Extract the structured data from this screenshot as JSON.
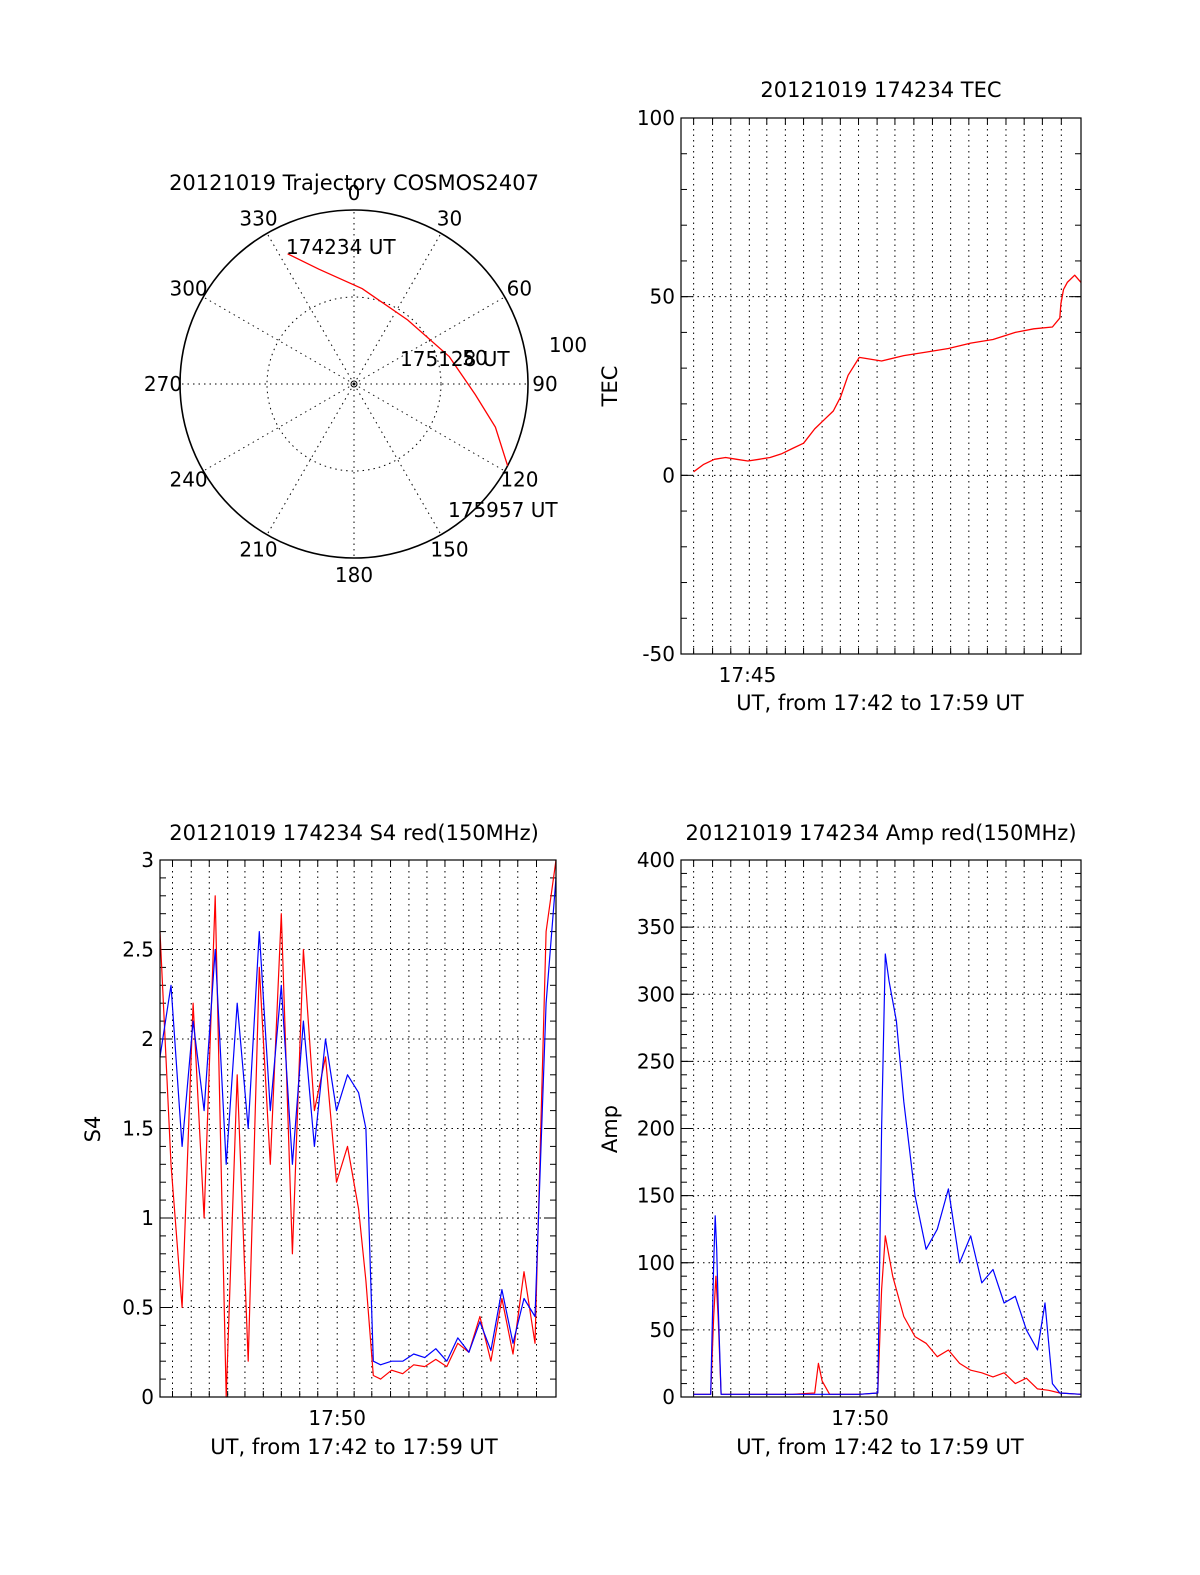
{
  "colors": {
    "red_channel": "#ff0000",
    "blue_channel": "#0000ff",
    "axes": "#000000"
  },
  "polar": {
    "title": "20121019 Trajectory COSMOS2407",
    "angle_labels": [
      "0",
      "30",
      "60",
      "90",
      "120",
      "150",
      "180",
      "210",
      "240",
      "270",
      "300",
      "330"
    ],
    "radial_labels": [
      "50",
      "100"
    ],
    "annotations": {
      "start": "174234 UT",
      "mid": "175128 UT",
      "end": "175957 UT"
    }
  },
  "chart_data": [
    {
      "type": "polar-trajectory",
      "title": "20121019 Trajectory COSMOS2407",
      "r_max": 100,
      "r_grid": [
        50,
        100
      ],
      "angle_ticks": [
        0,
        30,
        60,
        90,
        120,
        150,
        180,
        210,
        240,
        270,
        300,
        330
      ],
      "track": [
        {
          "az": 333,
          "r": 84
        },
        {
          "az": 343,
          "r": 69
        },
        {
          "az": 5,
          "r": 55
        },
        {
          "az": 40,
          "r": 48
        },
        {
          "az": 74,
          "r": 57
        },
        {
          "az": 95,
          "r": 70
        },
        {
          "az": 107,
          "r": 85
        },
        {
          "az": 118,
          "r": 100
        }
      ],
      "labels": [
        {
          "text": "174234 UT",
          "at": "start"
        },
        {
          "text": "175128 UT",
          "at": "middle"
        },
        {
          "text": "175957 UT",
          "at": "end"
        }
      ]
    },
    {
      "type": "line",
      "title": "20121019 174234 TEC",
      "ylabel": "TEC",
      "xlabel": "UT, from 17:42 to 17:59 UT",
      "xlim": [
        "17:42:00",
        "17:59:57"
      ],
      "ylim": [
        -50,
        100
      ],
      "yticks": [
        -50,
        0,
        50,
        100
      ],
      "xtick_labels": [
        {
          "t": "17:45",
          "at": "17:44:59"
        }
      ],
      "series": [
        {
          "color": "#ff0000",
          "x": [
            "17:42:34",
            "17:43:00",
            "17:43:30",
            "17:44:00",
            "17:44:30",
            "17:45:00",
            "17:45:30",
            "17:46:00",
            "17:46:30",
            "17:47:00",
            "17:47:30",
            "17:48:00",
            "17:48:30",
            "17:48:50",
            "17:49:10",
            "17:49:30",
            "17:50:00",
            "17:51:00",
            "17:52:00",
            "17:53:00",
            "17:54:00",
            "17:55:00",
            "17:56:00",
            "17:57:00",
            "17:57:50",
            "17:58:40",
            "17:59:00",
            "17:59:03",
            "17:59:10",
            "17:59:20",
            "17:59:40",
            "17:59:57"
          ],
          "y": [
            1,
            3,
            4.5,
            5,
            4.5,
            4,
            4.5,
            5,
            6,
            7.5,
            9,
            13,
            16,
            18,
            22,
            28,
            33,
            32,
            33.5,
            34.5,
            35.5,
            37,
            38,
            40,
            41,
            41.5,
            44,
            48,
            52,
            54,
            56,
            54
          ]
        }
      ]
    },
    {
      "type": "line",
      "title": "20121019 174234 S4 red(150MHz)",
      "ylabel": "S4",
      "xlabel": "UT, from 17:42 to 17:59 UT",
      "xlim": [
        "17:42:00",
        "17:59:57"
      ],
      "ylim": [
        0,
        3
      ],
      "yticks": [
        0,
        0.5,
        1,
        1.5,
        2,
        2.5,
        3
      ],
      "xtick_labels": [
        {
          "t": "17:50",
          "at": "17:50:02"
        }
      ],
      "series": [
        {
          "color": "#ff0000",
          "x": [
            "17:42:00",
            "17:42:30",
            "17:43:00",
            "17:43:30",
            "17:44:00",
            "17:44:30",
            "17:45:00",
            "17:45:30",
            "17:46:00",
            "17:46:30",
            "17:47:00",
            "17:47:30",
            "17:48:00",
            "17:48:30",
            "17:49:00",
            "17:49:30",
            "17:50:00",
            "17:50:30",
            "17:51:00",
            "17:51:20",
            "17:51:40",
            "17:52:00",
            "17:52:30",
            "17:53:00",
            "17:53:30",
            "17:54:00",
            "17:54:30",
            "17:55:00",
            "17:55:30",
            "17:56:00",
            "17:56:30",
            "17:57:00",
            "17:57:30",
            "17:58:00",
            "17:58:30",
            "17:59:00",
            "17:59:30",
            "17:59:57"
          ],
          "y": [
            2.6,
            1.3,
            0.5,
            2.2,
            1.0,
            2.8,
            0.0,
            1.8,
            0.2,
            2.4,
            1.3,
            2.7,
            0.8,
            2.5,
            1.6,
            1.9,
            1.2,
            1.4,
            1.05,
            0.65,
            0.12,
            0.1,
            0.15,
            0.13,
            0.18,
            0.17,
            0.21,
            0.17,
            0.3,
            0.25,
            0.45,
            0.2,
            0.55,
            0.24,
            0.7,
            0.3,
            2.6,
            3.0
          ]
        },
        {
          "color": "#0000ff",
          "x": [
            "17:42:00",
            "17:42:30",
            "17:43:00",
            "17:43:30",
            "17:44:00",
            "17:44:30",
            "17:45:00",
            "17:45:30",
            "17:46:00",
            "17:46:30",
            "17:47:00",
            "17:47:30",
            "17:48:00",
            "17:48:30",
            "17:49:00",
            "17:49:30",
            "17:50:00",
            "17:50:30",
            "17:51:00",
            "17:51:20",
            "17:51:40",
            "17:52:00",
            "17:52:30",
            "17:53:00",
            "17:53:30",
            "17:54:00",
            "17:54:30",
            "17:55:00",
            "17:55:30",
            "17:56:00",
            "17:56:30",
            "17:57:00",
            "17:57:30",
            "17:58:00",
            "17:58:30",
            "17:59:00",
            "17:59:30",
            "17:59:57"
          ],
          "y": [
            1.9,
            2.3,
            1.4,
            2.1,
            1.6,
            2.5,
            1.3,
            2.2,
            1.5,
            2.6,
            1.6,
            2.3,
            1.3,
            2.1,
            1.4,
            2.0,
            1.6,
            1.8,
            1.7,
            1.5,
            0.2,
            0.18,
            0.2,
            0.2,
            0.24,
            0.22,
            0.27,
            0.2,
            0.33,
            0.25,
            0.42,
            0.26,
            0.6,
            0.3,
            0.55,
            0.45,
            2.2,
            2.9
          ]
        }
      ]
    },
    {
      "type": "line",
      "title": "20121019 174234 Amp red(150MHz)",
      "ylabel": "Amp",
      "xlabel": "UT, from 17:42 to 17:59 UT",
      "xlim": [
        "17:42:00",
        "17:59:57"
      ],
      "ylim": [
        0,
        400
      ],
      "yticks": [
        0,
        50,
        100,
        150,
        200,
        250,
        300,
        350,
        400
      ],
      "xtick_labels": [
        {
          "t": "17:50",
          "at": "17:50:02"
        }
      ],
      "series": [
        {
          "color": "#ff0000",
          "x": [
            "17:42:34",
            "17:43:20",
            "17:43:28",
            "17:43:34",
            "17:43:40",
            "17:43:48",
            "17:45:00",
            "17:47:00",
            "17:48:00",
            "17:48:10",
            "17:48:20",
            "17:48:40",
            "17:50:00",
            "17:50:50",
            "17:51:00",
            "17:51:10",
            "17:51:30",
            "17:52:00",
            "17:52:30",
            "17:53:00",
            "17:53:30",
            "17:54:00",
            "17:54:30",
            "17:55:00",
            "17:55:30",
            "17:56:00",
            "17:56:30",
            "17:57:00",
            "17:57:30",
            "17:58:00",
            "17:58:30",
            "17:59:00",
            "17:59:57"
          ],
          "y": [
            2,
            2,
            60,
            90,
            60,
            2,
            2,
            2,
            3,
            25,
            12,
            2,
            2,
            3,
            80,
            120,
            90,
            60,
            45,
            40,
            30,
            35,
            25,
            20,
            18,
            15,
            18,
            10,
            14,
            6,
            5,
            3,
            2
          ]
        },
        {
          "color": "#0000ff",
          "x": [
            "17:42:34",
            "17:43:20",
            "17:43:28",
            "17:43:32",
            "17:43:36",
            "17:43:40",
            "17:43:48",
            "17:45:00",
            "17:47:00",
            "17:48:00",
            "17:49:00",
            "17:50:00",
            "17:50:50",
            "17:51:00",
            "17:51:10",
            "17:51:20",
            "17:51:40",
            "17:52:00",
            "17:52:30",
            "17:53:00",
            "17:53:30",
            "17:54:00",
            "17:54:30",
            "17:55:00",
            "17:55:30",
            "17:56:00",
            "17:56:30",
            "17:57:00",
            "17:57:30",
            "17:58:00",
            "17:58:20",
            "17:58:40",
            "17:59:00",
            "17:59:57"
          ],
          "y": [
            2,
            2,
            100,
            135,
            110,
            70,
            2,
            2,
            2,
            2,
            2,
            2,
            3,
            200,
            330,
            310,
            280,
            220,
            150,
            110,
            125,
            155,
            100,
            120,
            85,
            95,
            70,
            75,
            50,
            35,
            70,
            10,
            3,
            2
          ]
        }
      ]
    }
  ]
}
